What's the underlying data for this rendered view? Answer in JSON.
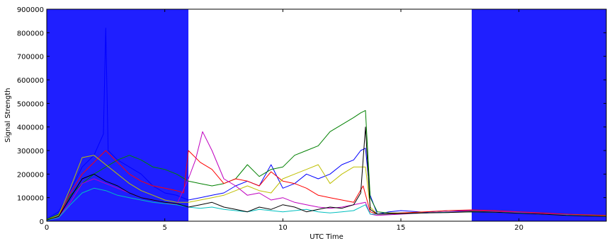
{
  "chart_data": {
    "type": "line",
    "title": "",
    "xlabel": "UTC Time",
    "ylabel": "Signal Strength",
    "xlim": [
      0,
      23.7
    ],
    "ylim": [
      0,
      900000
    ],
    "xticks": [
      0,
      5,
      10,
      15,
      20
    ],
    "yticks": [
      0,
      100000,
      200000,
      300000,
      400000,
      500000,
      600000,
      700000,
      800000,
      900000
    ],
    "grid": false,
    "legend": "none",
    "shaded_regions": [
      {
        "x0": 0,
        "x1": 6,
        "color": "#1f1fff"
      },
      {
        "x0": 18,
        "x1": 23.7,
        "color": "#1f1fff"
      }
    ],
    "series": [
      {
        "color": "#0000ff",
        "points": [
          [
            0,
            10000
          ],
          [
            0.5,
            40000
          ],
          [
            1,
            130000
          ],
          [
            1.5,
            230000
          ],
          [
            2,
            280000
          ],
          [
            2.4,
            370000
          ],
          [
            2.5,
            820000
          ],
          [
            2.6,
            300000
          ],
          [
            3,
            260000
          ],
          [
            3.5,
            230000
          ],
          [
            4,
            200000
          ],
          [
            4.5,
            150000
          ],
          [
            5,
            120000
          ],
          [
            5.5,
            110000
          ],
          [
            6,
            90000
          ],
          [
            6.5,
            100000
          ],
          [
            7,
            110000
          ],
          [
            7.5,
            120000
          ],
          [
            8,
            150000
          ],
          [
            8.5,
            170000
          ],
          [
            9,
            150000
          ],
          [
            9.5,
            240000
          ],
          [
            10,
            140000
          ],
          [
            10.5,
            160000
          ],
          [
            11,
            200000
          ],
          [
            11.5,
            180000
          ],
          [
            12,
            200000
          ],
          [
            12.5,
            240000
          ],
          [
            13,
            260000
          ],
          [
            13.3,
            300000
          ],
          [
            13.5,
            310000
          ],
          [
            13.7,
            110000
          ],
          [
            14,
            30000
          ],
          [
            14.5,
            40000
          ],
          [
            15,
            45000
          ],
          [
            16,
            38000
          ],
          [
            17,
            45000
          ],
          [
            18,
            45000
          ],
          [
            19,
            42000
          ],
          [
            20,
            38000
          ],
          [
            21,
            35000
          ],
          [
            22,
            30000
          ],
          [
            23.7,
            25000
          ]
        ]
      },
      {
        "color": "#008000",
        "points": [
          [
            0,
            8000
          ],
          [
            0.5,
            30000
          ],
          [
            1,
            110000
          ],
          [
            1.5,
            160000
          ],
          [
            2,
            200000
          ],
          [
            2.5,
            230000
          ],
          [
            3,
            260000
          ],
          [
            3.5,
            280000
          ],
          [
            4,
            260000
          ],
          [
            4.5,
            230000
          ],
          [
            5,
            220000
          ],
          [
            5.5,
            200000
          ],
          [
            6,
            170000
          ],
          [
            6.5,
            160000
          ],
          [
            7,
            150000
          ],
          [
            7.5,
            160000
          ],
          [
            8,
            180000
          ],
          [
            8.5,
            240000
          ],
          [
            9,
            190000
          ],
          [
            9.5,
            220000
          ],
          [
            10,
            230000
          ],
          [
            10.5,
            280000
          ],
          [
            11,
            300000
          ],
          [
            11.5,
            320000
          ],
          [
            12,
            380000
          ],
          [
            12.5,
            410000
          ],
          [
            13,
            440000
          ],
          [
            13.3,
            460000
          ],
          [
            13.5,
            470000
          ],
          [
            13.7,
            100000
          ],
          [
            14,
            40000
          ],
          [
            14.5,
            35000
          ],
          [
            15,
            35000
          ],
          [
            16,
            35000
          ],
          [
            17,
            40000
          ],
          [
            18,
            42000
          ],
          [
            19,
            40000
          ],
          [
            20,
            37000
          ],
          [
            21,
            33000
          ],
          [
            22,
            28000
          ],
          [
            23.7,
            22000
          ]
        ]
      },
      {
        "color": "#ff0000",
        "points": [
          [
            0,
            5000
          ],
          [
            0.5,
            20000
          ],
          [
            1,
            120000
          ],
          [
            1.5,
            200000
          ],
          [
            2,
            250000
          ],
          [
            2.5,
            300000
          ],
          [
            3,
            250000
          ],
          [
            3.5,
            200000
          ],
          [
            4,
            170000
          ],
          [
            4.5,
            150000
          ],
          [
            5,
            140000
          ],
          [
            5.5,
            130000
          ],
          [
            5.8,
            120000
          ],
          [
            6,
            300000
          ],
          [
            6.5,
            250000
          ],
          [
            7,
            220000
          ],
          [
            7.5,
            160000
          ],
          [
            8,
            180000
          ],
          [
            8.5,
            170000
          ],
          [
            9,
            150000
          ],
          [
            9.5,
            210000
          ],
          [
            10,
            170000
          ],
          [
            10.5,
            160000
          ],
          [
            11,
            140000
          ],
          [
            11.5,
            110000
          ],
          [
            12,
            100000
          ],
          [
            12.5,
            90000
          ],
          [
            13,
            80000
          ],
          [
            13.4,
            150000
          ],
          [
            13.7,
            40000
          ],
          [
            14,
            30000
          ],
          [
            15,
            35000
          ],
          [
            16,
            40000
          ],
          [
            17,
            45000
          ],
          [
            18,
            48000
          ],
          [
            19,
            45000
          ],
          [
            20,
            40000
          ],
          [
            21,
            35000
          ],
          [
            22,
            30000
          ],
          [
            23.7,
            25000
          ]
        ]
      },
      {
        "color": "#bfbf00",
        "points": [
          [
            0,
            6000
          ],
          [
            0.5,
            25000
          ],
          [
            1,
            140000
          ],
          [
            1.5,
            270000
          ],
          [
            2,
            280000
          ],
          [
            2.5,
            240000
          ],
          [
            3,
            200000
          ],
          [
            3.5,
            160000
          ],
          [
            4,
            130000
          ],
          [
            4.5,
            110000
          ],
          [
            5,
            90000
          ],
          [
            5.5,
            80000
          ],
          [
            6,
            80000
          ],
          [
            6.5,
            90000
          ],
          [
            7,
            100000
          ],
          [
            7.5,
            110000
          ],
          [
            8,
            130000
          ],
          [
            8.5,
            150000
          ],
          [
            9,
            130000
          ],
          [
            9.5,
            120000
          ],
          [
            10,
            180000
          ],
          [
            10.5,
            200000
          ],
          [
            11,
            220000
          ],
          [
            11.5,
            240000
          ],
          [
            12,
            160000
          ],
          [
            12.5,
            200000
          ],
          [
            13,
            230000
          ],
          [
            13.5,
            230000
          ],
          [
            13.7,
            60000
          ],
          [
            14,
            30000
          ],
          [
            15,
            33000
          ],
          [
            16,
            35000
          ],
          [
            17,
            38000
          ],
          [
            18,
            40000
          ],
          [
            19,
            38000
          ],
          [
            20,
            35000
          ],
          [
            21,
            30000
          ],
          [
            22,
            28000
          ],
          [
            23.7,
            22000
          ]
        ]
      },
      {
        "color": "#bf00bf",
        "points": [
          [
            0,
            5000
          ],
          [
            0.5,
            15000
          ],
          [
            1,
            80000
          ],
          [
            1.5,
            160000
          ],
          [
            2,
            180000
          ],
          [
            2.5,
            160000
          ],
          [
            3,
            140000
          ],
          [
            3.5,
            120000
          ],
          [
            4,
            100000
          ],
          [
            4.5,
            90000
          ],
          [
            5,
            80000
          ],
          [
            5.5,
            70000
          ],
          [
            6,
            180000
          ],
          [
            6.3,
            260000
          ],
          [
            6.6,
            380000
          ],
          [
            7,
            300000
          ],
          [
            7.5,
            180000
          ],
          [
            8,
            150000
          ],
          [
            8.5,
            110000
          ],
          [
            9,
            120000
          ],
          [
            9.5,
            90000
          ],
          [
            10,
            100000
          ],
          [
            10.5,
            80000
          ],
          [
            11,
            70000
          ],
          [
            11.5,
            60000
          ],
          [
            12,
            55000
          ],
          [
            12.5,
            60000
          ],
          [
            13,
            70000
          ],
          [
            13.5,
            80000
          ],
          [
            13.7,
            30000
          ],
          [
            14,
            25000
          ],
          [
            15,
            30000
          ],
          [
            16,
            35000
          ],
          [
            17,
            40000
          ],
          [
            18,
            45000
          ],
          [
            19,
            42000
          ],
          [
            20,
            38000
          ],
          [
            21,
            32000
          ],
          [
            22,
            28000
          ],
          [
            23.7,
            20000
          ]
        ]
      },
      {
        "color": "#00bfbf",
        "points": [
          [
            0,
            4000
          ],
          [
            0.5,
            15000
          ],
          [
            1,
            70000
          ],
          [
            1.5,
            120000
          ],
          [
            2,
            140000
          ],
          [
            2.5,
            130000
          ],
          [
            3,
            110000
          ],
          [
            3.5,
            100000
          ],
          [
            4,
            90000
          ],
          [
            4.5,
            80000
          ],
          [
            5,
            75000
          ],
          [
            5.5,
            70000
          ],
          [
            6,
            60000
          ],
          [
            6.5,
            55000
          ],
          [
            7,
            60000
          ],
          [
            7.5,
            50000
          ],
          [
            8,
            45000
          ],
          [
            8.5,
            40000
          ],
          [
            9,
            50000
          ],
          [
            9.5,
            45000
          ],
          [
            10,
            40000
          ],
          [
            10.5,
            45000
          ],
          [
            11,
            50000
          ],
          [
            11.5,
            40000
          ],
          [
            12,
            35000
          ],
          [
            12.5,
            40000
          ],
          [
            13,
            45000
          ],
          [
            13.5,
            70000
          ],
          [
            13.7,
            30000
          ],
          [
            14,
            30000
          ],
          [
            15,
            32000
          ],
          [
            16,
            35000
          ],
          [
            17,
            38000
          ],
          [
            18,
            40000
          ],
          [
            19,
            38000
          ],
          [
            20,
            35000
          ],
          [
            21,
            30000
          ],
          [
            22,
            26000
          ],
          [
            23.7,
            20000
          ]
        ]
      },
      {
        "color": "#000000",
        "points": [
          [
            0,
            5000
          ],
          [
            0.5,
            20000
          ],
          [
            1,
            100000
          ],
          [
            1.5,
            180000
          ],
          [
            2,
            200000
          ],
          [
            2.5,
            170000
          ],
          [
            3,
            150000
          ],
          [
            3.5,
            120000
          ],
          [
            4,
            100000
          ],
          [
            4.5,
            90000
          ],
          [
            5,
            80000
          ],
          [
            5.5,
            75000
          ],
          [
            6,
            60000
          ],
          [
            6.5,
            70000
          ],
          [
            7,
            80000
          ],
          [
            7.5,
            60000
          ],
          [
            8,
            50000
          ],
          [
            8.5,
            40000
          ],
          [
            9,
            60000
          ],
          [
            9.5,
            50000
          ],
          [
            10,
            70000
          ],
          [
            10.5,
            60000
          ],
          [
            11,
            40000
          ],
          [
            11.5,
            50000
          ],
          [
            12,
            60000
          ],
          [
            12.5,
            55000
          ],
          [
            13,
            70000
          ],
          [
            13.3,
            120000
          ],
          [
            13.5,
            400000
          ],
          [
            13.7,
            50000
          ],
          [
            14,
            30000
          ],
          [
            15,
            32000
          ],
          [
            16,
            35000
          ],
          [
            17,
            37000
          ],
          [
            18,
            40000
          ],
          [
            19,
            38000
          ],
          [
            20,
            34000
          ],
          [
            21,
            30000
          ],
          [
            22,
            25000
          ],
          [
            23.7,
            20000
          ]
        ]
      }
    ]
  }
}
